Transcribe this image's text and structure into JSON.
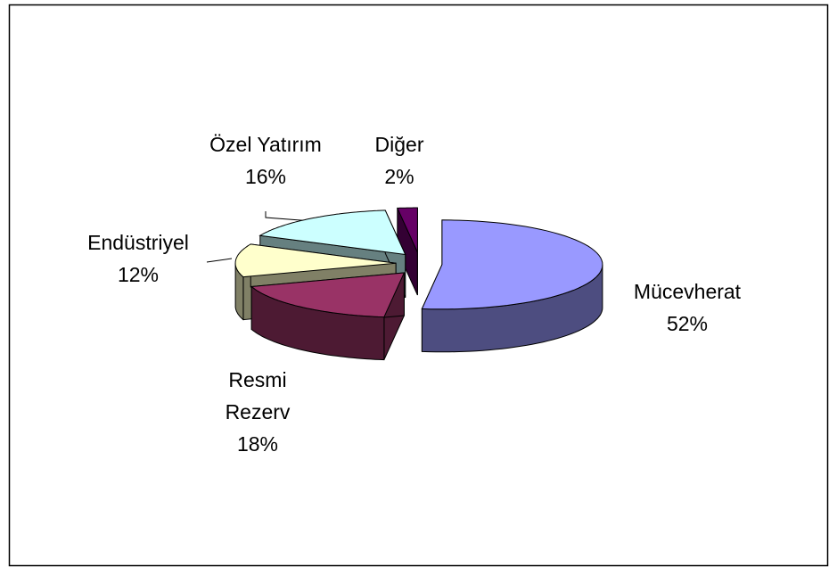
{
  "chart_data": {
    "type": "pie",
    "three_d": true,
    "exploded": true,
    "categories": [
      "Mücevherat",
      "Resmi Rezerv",
      "Endüstriyel",
      "Özel Yatırım",
      "Diğer"
    ],
    "values": [
      52,
      18,
      12,
      16,
      2
    ],
    "value_labels": [
      "52%",
      "18%",
      "12%",
      "16%",
      "2%"
    ],
    "colors": [
      "#9999ff",
      "#993366",
      "#ffffcc",
      "#ccffff",
      "#660066"
    ]
  }
}
